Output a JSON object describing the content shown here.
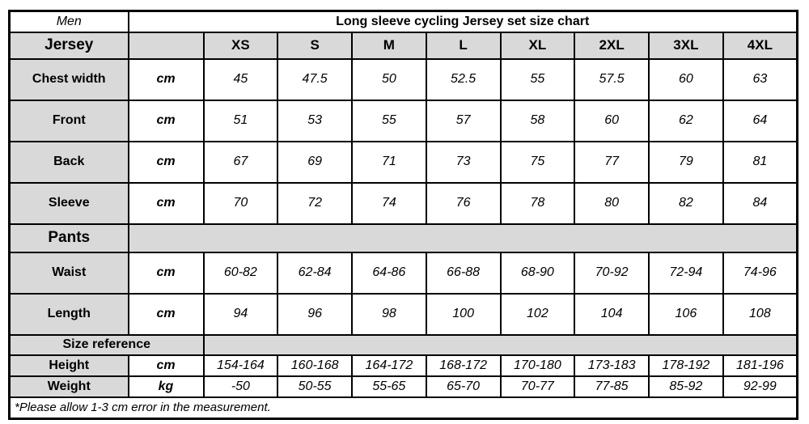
{
  "chart_data": {
    "type": "table",
    "title": "Long sleeve cycling Jersey set size chart",
    "corner_label": "Men",
    "size_columns": [
      "XS",
      "S",
      "M",
      "L",
      "XL",
      "2XL",
      "3XL",
      "4XL"
    ],
    "sections": [
      {
        "label": "Jersey",
        "rows": [
          {
            "label": "Chest width",
            "unit": "cm",
            "values": [
              "45",
              "47.5",
              "50",
              "52.5",
              "55",
              "57.5",
              "60",
              "63"
            ]
          },
          {
            "label": "Front",
            "unit": "cm",
            "values": [
              "51",
              "53",
              "55",
              "57",
              "58",
              "60",
              "62",
              "64"
            ]
          },
          {
            "label": "Back",
            "unit": "cm",
            "values": [
              "67",
              "69",
              "71",
              "73",
              "75",
              "77",
              "79",
              "81"
            ]
          },
          {
            "label": "Sleeve",
            "unit": "cm",
            "values": [
              "70",
              "72",
              "74",
              "76",
              "78",
              "80",
              "82",
              "84"
            ]
          }
        ]
      },
      {
        "label": "Pants",
        "rows": [
          {
            "label": "Waist",
            "unit": "cm",
            "values": [
              "60-82",
              "62-84",
              "64-86",
              "66-88",
              "68-90",
              "70-92",
              "72-94",
              "74-96"
            ]
          },
          {
            "label": "Length",
            "unit": "cm",
            "values": [
              "94",
              "96",
              "98",
              "100",
              "102",
              "104",
              "106",
              "108"
            ]
          }
        ]
      },
      {
        "label": "Size reference",
        "rows": [
          {
            "label": "Height",
            "unit": "cm",
            "values": [
              "154-164",
              "160-168",
              "164-172",
              "168-172",
              "170-180",
              "173-183",
              "178-192",
              "181-196"
            ]
          },
          {
            "label": "Weight",
            "unit": "kg",
            "values": [
              "-50",
              "50-55",
              "55-65",
              "65-70",
              "70-77",
              "77-85",
              "85-92",
              "92-99"
            ]
          }
        ]
      }
    ],
    "footnote": "*Please allow 1-3 cm error in the measurement."
  },
  "colors": {
    "header_bg": "#d9d9d9",
    "border": "#000000",
    "text": "#000000",
    "page_bg": "#ffffff"
  }
}
